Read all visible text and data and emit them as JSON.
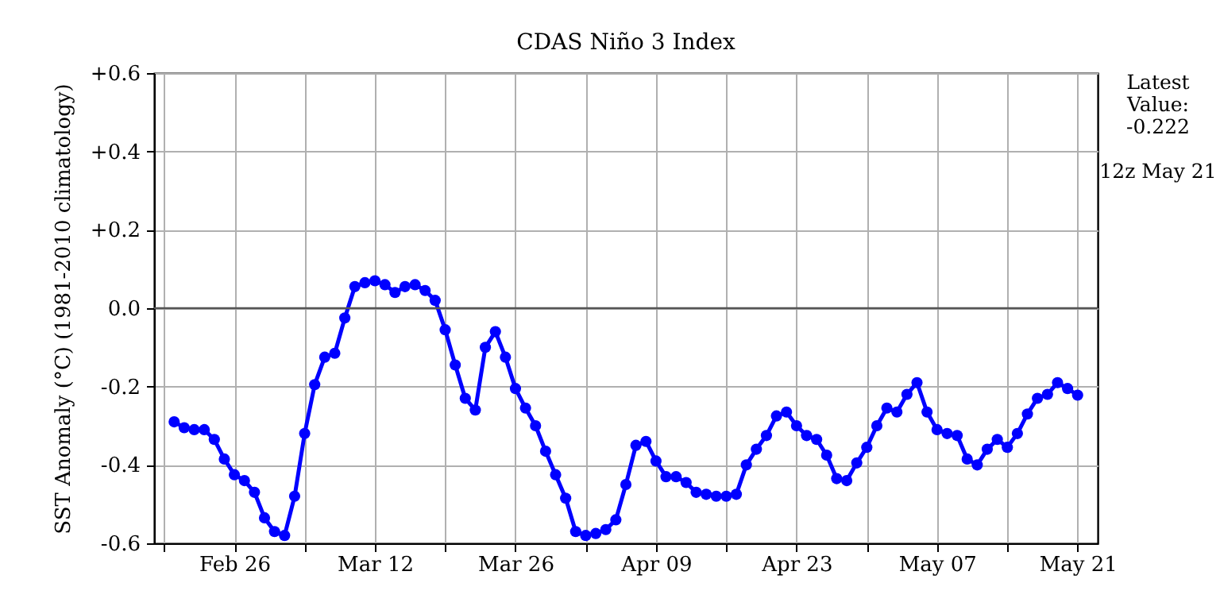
{
  "chart_data": {
    "type": "line",
    "title": "CDAS Niño 3 Index",
    "ylabel": "SST Anomaly (°C) (1981-2010 climatology)",
    "annotations": [
      "Latest\nValue:\n-0.222",
      "12z May 21"
    ],
    "x": [
      "--02-20",
      "--02-21",
      "--02-22",
      "--02-23",
      "--02-24",
      "--02-25",
      "--02-26",
      "--02-27",
      "--02-28",
      "--03-01",
      "--03-02",
      "--03-03",
      "--03-04",
      "--03-05",
      "--03-06",
      "--03-07",
      "--03-08",
      "--03-09",
      "--03-10",
      "--03-11",
      "--03-12",
      "--03-13",
      "--03-14",
      "--03-15",
      "--03-16",
      "--03-17",
      "--03-18",
      "--03-19",
      "--03-20",
      "--03-21",
      "--03-22",
      "--03-23",
      "--03-24",
      "--03-25",
      "--03-26",
      "--03-27",
      "--03-28",
      "--03-29",
      "--03-30",
      "--03-31",
      "--04-01",
      "--04-02",
      "--04-03",
      "--04-04",
      "--04-05",
      "--04-06",
      "--04-07",
      "--04-08",
      "--04-09",
      "--04-10",
      "--04-11",
      "--04-12",
      "--04-13",
      "--04-14",
      "--04-15",
      "--04-16",
      "--04-17",
      "--04-18",
      "--04-19",
      "--04-20",
      "--04-21",
      "--04-22",
      "--04-23",
      "--04-24",
      "--04-25",
      "--04-26",
      "--04-27",
      "--04-28",
      "--04-29",
      "--04-30",
      "--05-01",
      "--05-02",
      "--05-03",
      "--05-04",
      "--05-05",
      "--05-06",
      "--05-07",
      "--05-08",
      "--05-09",
      "--05-10",
      "--05-11",
      "--05-12",
      "--05-13",
      "--05-14",
      "--05-15",
      "--05-16",
      "--05-17",
      "--05-18",
      "--05-19",
      "--05-20",
      "--05-21"
    ],
    "series": [
      {
        "color": "#0000ff",
        "values": [
          -0.29,
          -0.305,
          -0.31,
          -0.31,
          -0.335,
          -0.385,
          -0.425,
          -0.44,
          -0.47,
          -0.535,
          -0.57,
          -0.58,
          -0.48,
          -0.32,
          -0.195,
          -0.125,
          -0.115,
          -0.025,
          0.055,
          0.065,
          0.07,
          0.06,
          0.04,
          0.055,
          0.06,
          0.045,
          0.02,
          -0.055,
          -0.145,
          -0.23,
          -0.26,
          -0.1,
          -0.06,
          -0.125,
          -0.205,
          -0.255,
          -0.3,
          -0.365,
          -0.425,
          -0.485,
          -0.57,
          -0.58,
          -0.575,
          -0.565,
          -0.54,
          -0.45,
          -0.35,
          -0.34,
          -0.39,
          -0.43,
          -0.43,
          -0.445,
          -0.47,
          -0.475,
          -0.48,
          -0.48,
          -0.475,
          -0.4,
          -0.36,
          -0.325,
          -0.275,
          -0.265,
          -0.3,
          -0.325,
          -0.335,
          -0.375,
          -0.435,
          -0.44,
          -0.395,
          -0.355,
          -0.3,
          -0.255,
          -0.265,
          -0.22,
          -0.19,
          -0.265,
          -0.31,
          -0.32,
          -0.325,
          -0.385,
          -0.4,
          -0.36,
          -0.335,
          -0.355,
          -0.32,
          -0.27,
          -0.23,
          -0.22,
          -0.19,
          -0.205,
          -0.222
        ]
      }
    ],
    "xlim": [
      "--02-18",
      "--05-23"
    ],
    "xticks": [
      {
        "value": "--02-19",
        "label": null
      },
      {
        "value": "--02-26",
        "label": "Feb 26"
      },
      {
        "value": "--03-05",
        "label": null
      },
      {
        "value": "--03-12",
        "label": "Mar 12"
      },
      {
        "value": "--03-19",
        "label": null
      },
      {
        "value": "--03-26",
        "label": "Mar 26"
      },
      {
        "value": "--04-02",
        "label": null
      },
      {
        "value": "--04-09",
        "label": "Apr 09"
      },
      {
        "value": "--04-16",
        "label": null
      },
      {
        "value": "--04-23",
        "label": "Apr 23"
      },
      {
        "value": "--04-30",
        "label": null
      },
      {
        "value": "--05-07",
        "label": "May 07"
      },
      {
        "value": "--05-14",
        "label": null
      },
      {
        "value": "--05-21",
        "label": "May 21"
      }
    ],
    "ylim": [
      -0.6,
      0.6
    ],
    "yticks": [
      {
        "value": -0.6,
        "label": "-0.6"
      },
      {
        "value": -0.4,
        "label": "-0.4"
      },
      {
        "value": -0.2,
        "label": "-0.2"
      },
      {
        "value": 0,
        "label": "0.0"
      },
      {
        "value": 0.2,
        "label": "+0.2"
      },
      {
        "value": 0.4,
        "label": "+0.4"
      },
      {
        "value": 0.6,
        "label": "+0.6"
      }
    ],
    "ref_lines": [
      {
        "axis": "y",
        "value": 0,
        "color": "#555555"
      }
    ],
    "grid": true,
    "marker": "circle",
    "line_style": "solid"
  }
}
